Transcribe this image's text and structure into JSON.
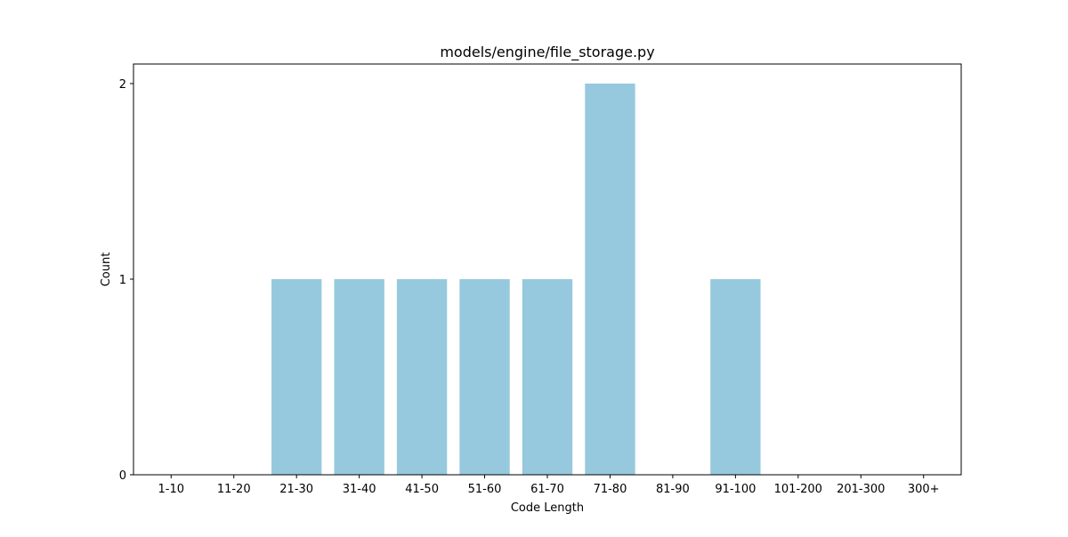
{
  "chart_data": {
    "type": "bar",
    "title": "models/engine/file_storage.py",
    "xlabel": "Code Length",
    "ylabel": "Count",
    "categories": [
      "1-10",
      "11-20",
      "21-30",
      "31-40",
      "41-50",
      "51-60",
      "61-70",
      "71-80",
      "81-90",
      "91-100",
      "101-200",
      "201-300",
      "300+"
    ],
    "values": [
      0,
      0,
      1,
      1,
      1,
      1,
      1,
      2,
      0,
      1,
      0,
      0,
      0
    ],
    "ylim": [
      0,
      2.1
    ],
    "yticks": [
      0,
      1,
      2
    ],
    "grid": false,
    "bar_color": "#96c9dd"
  }
}
